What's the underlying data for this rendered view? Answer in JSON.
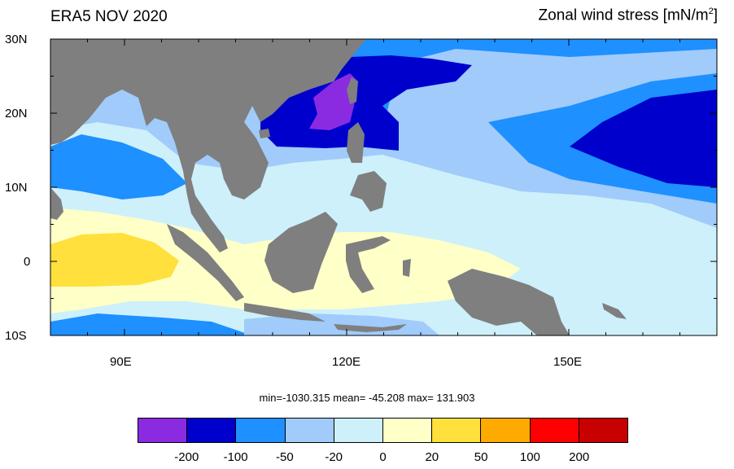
{
  "title_left": "ERA5 NOV 2020",
  "title_right": "Zonal wind stress [mN/m",
  "title_right_sup": "2",
  "title_right_close": "]",
  "y_labels": [
    "30N",
    "20N",
    "10N",
    "0",
    "10S"
  ],
  "x_labels": [
    "90E",
    "120E",
    "150E"
  ],
  "stats": "min=-1030.315  mean= -45.208  max= 131.903",
  "colorbar": {
    "colors": [
      "#8a2be2",
      "#0000cd",
      "#1e90ff",
      "#a0cbfa",
      "#cdf0fb",
      "#ffffc8",
      "#ffe03c",
      "#ffaa00",
      "#ff0000",
      "#c80000"
    ],
    "labels": [
      "-200",
      "-100",
      "-50",
      "-20",
      "0",
      "20",
      "50",
      "100",
      "200"
    ]
  },
  "map_colors": {
    "land": "#7f7f7f",
    "c_purple": "#8a2be2",
    "c_navy": "#0000cd",
    "c_blue": "#1e90ff",
    "c_lightblue": "#a0cbfa",
    "c_paleblue": "#cdf0fb",
    "c_paleyellow": "#ffffc8",
    "c_yellow": "#ffe03c"
  }
}
